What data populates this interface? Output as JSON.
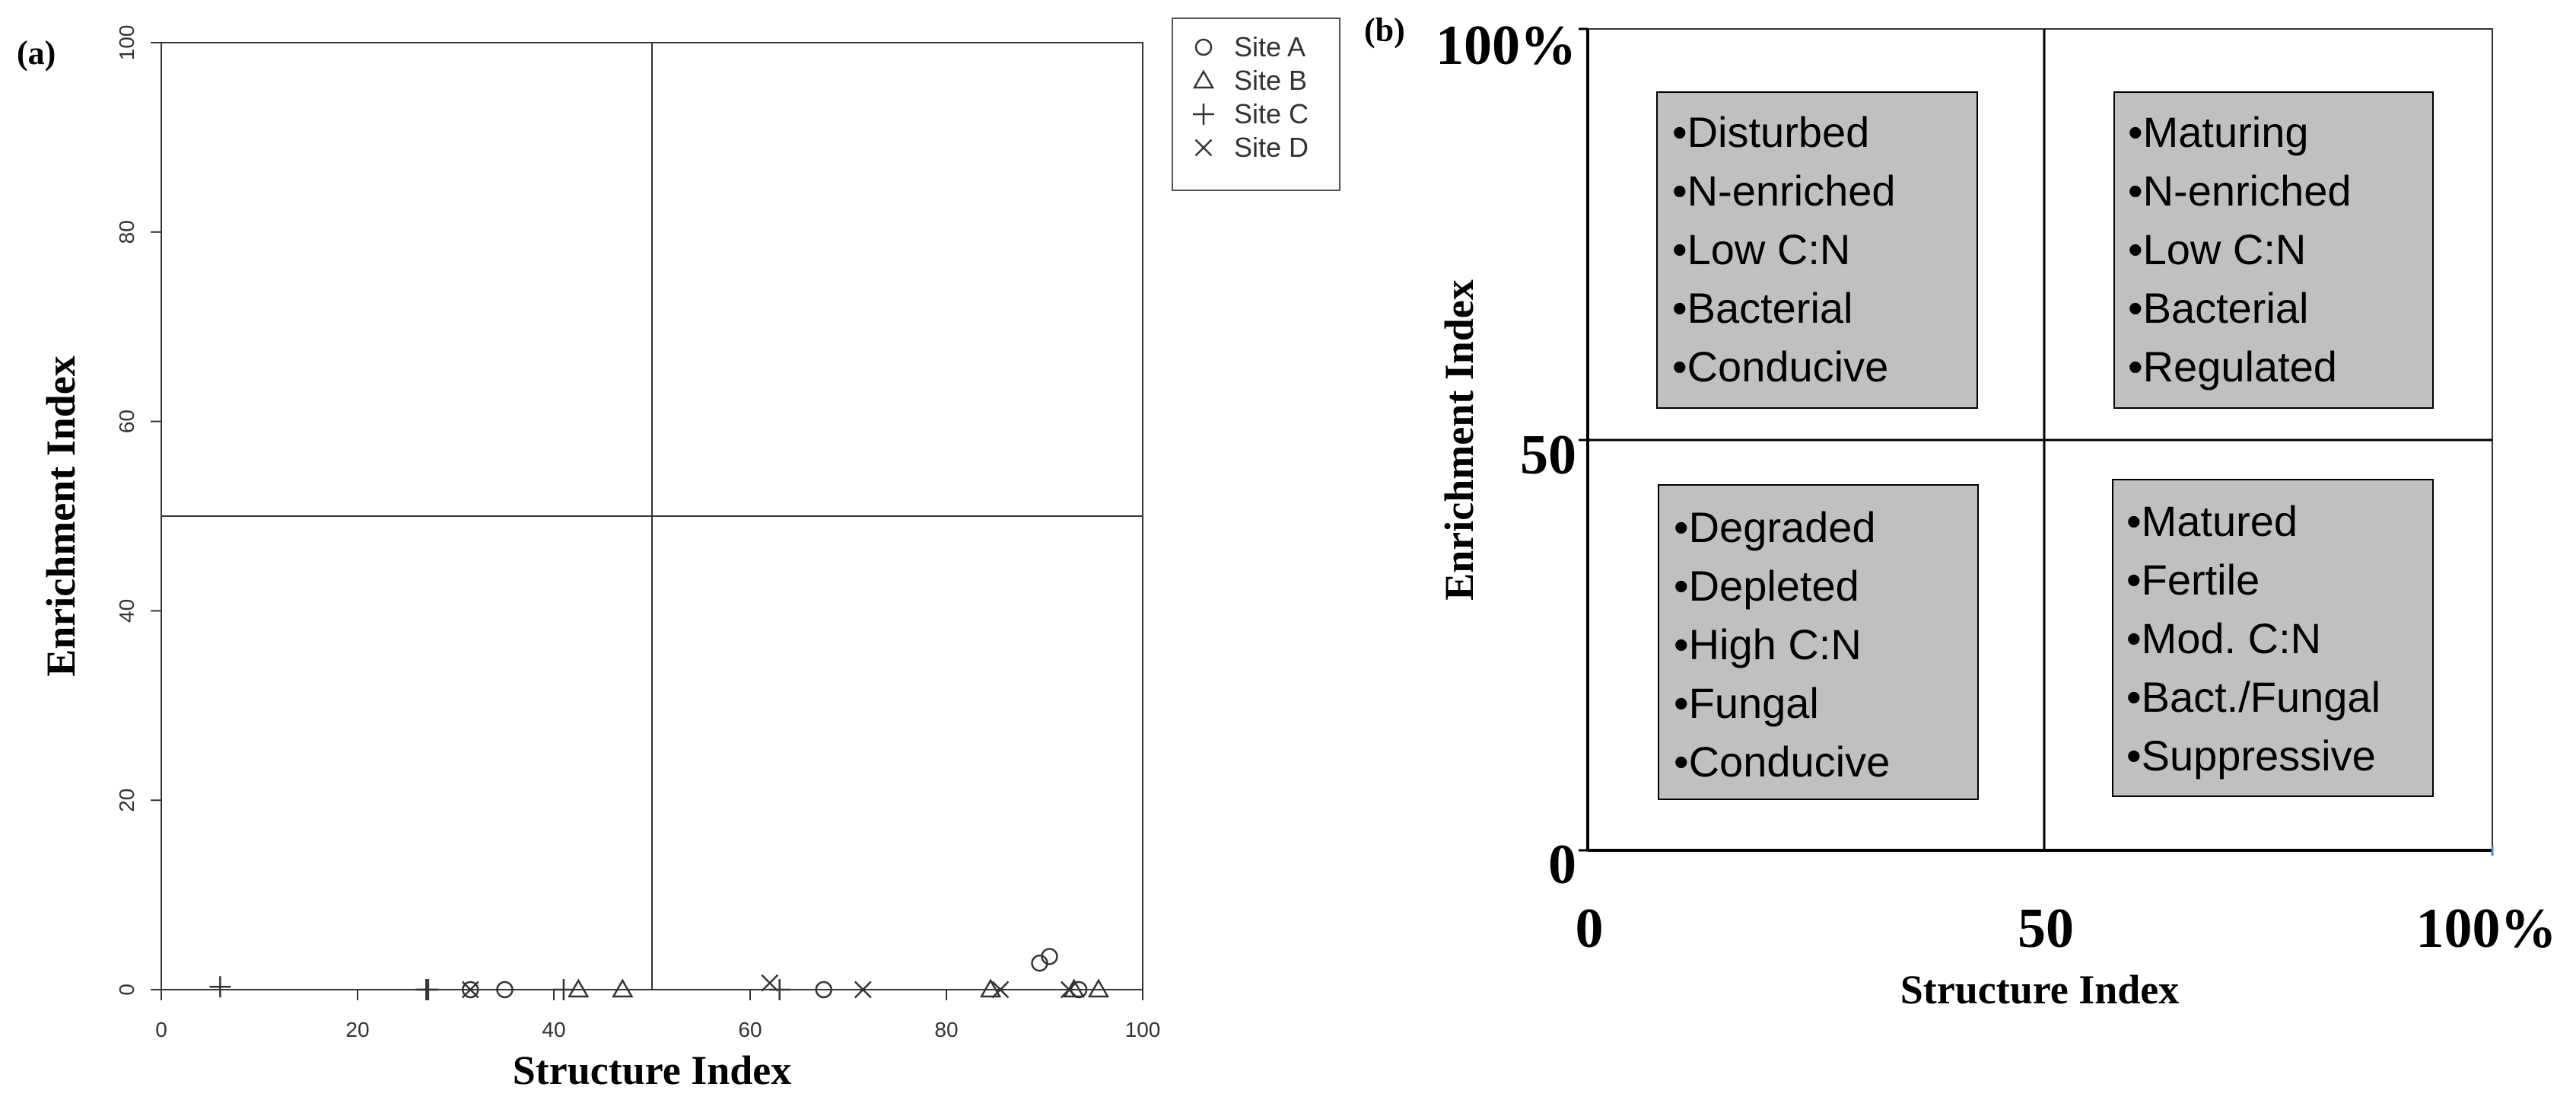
{
  "chart_data": [
    {
      "panel": "(a)",
      "type": "scatter",
      "xlabel": "Structure Index",
      "ylabel": "Enrichment Index",
      "xlim": [
        0,
        100
      ],
      "ylim": [
        0,
        100
      ],
      "x_ticks": [
        "0",
        "20",
        "40",
        "60",
        "80",
        "100"
      ],
      "y_ticks": [
        "0",
        "20",
        "40",
        "60",
        "80",
        "100"
      ],
      "reference_lines": {
        "x": 50,
        "y": 50
      },
      "legend_position": "outside-right-top",
      "series": [
        {
          "name": "Site A",
          "marker": "circle",
          "points": [
            [
              31.5,
              0
            ],
            [
              35,
              0
            ],
            [
              67.5,
              0
            ],
            [
              89.5,
              2.8
            ],
            [
              90.5,
              3.5
            ],
            [
              93.5,
              0
            ]
          ]
        },
        {
          "name": "Site B",
          "marker": "triangle",
          "points": [
            [
              42.5,
              0
            ],
            [
              47,
              0
            ],
            [
              84.5,
              0
            ],
            [
              93,
              0
            ],
            [
              95.5,
              0
            ]
          ]
        },
        {
          "name": "Site C",
          "marker": "plus",
          "points": [
            [
              6,
              0.3
            ],
            [
              27,
              0
            ],
            [
              27.2,
              0
            ],
            [
              41,
              0
            ],
            [
              63,
              0
            ]
          ]
        },
        {
          "name": "Site D",
          "marker": "cross",
          "points": [
            [
              31.5,
              0
            ],
            [
              62,
              0.7
            ],
            [
              71.5,
              0
            ],
            [
              85.5,
              0
            ],
            [
              92.5,
              0
            ]
          ]
        }
      ]
    },
    {
      "panel": "(b)",
      "type": "diagram",
      "xlabel": "Structure Index",
      "ylabel": "Enrichment Index",
      "x_ticks": [
        "0",
        "50",
        "100%"
      ],
      "y_ticks": [
        "0",
        "50",
        "100%"
      ],
      "quadrants": {
        "upper_left": [
          "•Disturbed",
          "•N-enriched",
          "•Low C:N",
          "•Bacterial",
          "•Conducive"
        ],
        "upper_right": [
          "•Maturing",
          "•N-enriched",
          "•Low C:N",
          "•Bacterial",
          "•Regulated"
        ],
        "lower_left": [
          "•Degraded",
          "•Depleted",
          "•High C:N",
          "•Fungal",
          "•Conducive"
        ],
        "lower_right": [
          "•Matured",
          "•Fertile",
          "•Mod. C:N",
          "•Bact./Fungal",
          "•Suppressive"
        ]
      }
    }
  ],
  "colors": {
    "axis": "#000000",
    "box_fill": "#c0c0c0",
    "plot_stroke": "#333333"
  }
}
